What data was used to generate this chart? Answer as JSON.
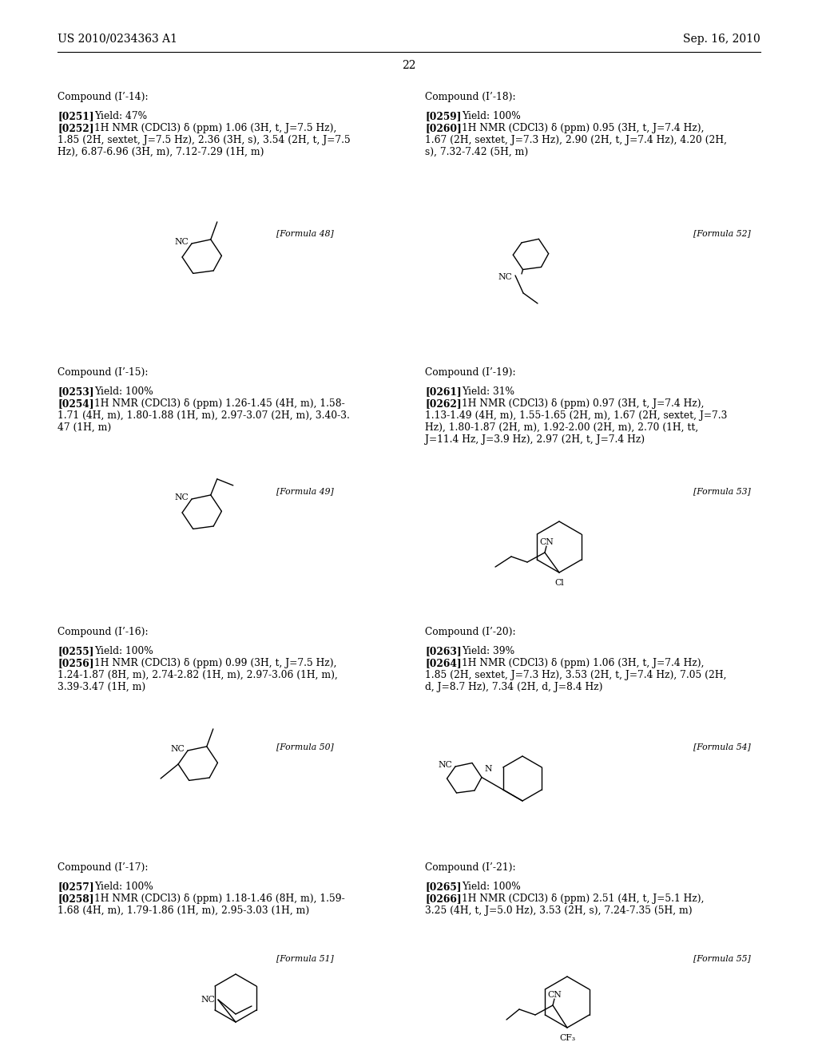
{
  "header_left": "US 2010/0234363 A1",
  "header_right": "Sep. 16, 2010",
  "page_number": "22",
  "background_color": "#ffffff",
  "text_color": "#000000",
  "compounds": [
    {
      "id": "left1",
      "name": "Compound (I’-14):",
      "para1_ref": "[0251]",
      "para1_text": "   Yield: 47%",
      "para2_ref": "[0252]",
      "para2_text": "   1H NMR (CDCl3) δ (ppm) 1.06 (3H, t, J=7.5 Hz),\n1.85 (2H, sextet, J=7.5 Hz), 2.36 (3H, s), 3.54 (2H, t, J=7.5\nHz), 6.87-6.96 (3H, m), 7.12-7.29 (1H, m)",
      "formula_label": "[Formula 48]",
      "col": "left"
    },
    {
      "id": "right1",
      "name": "Compound (I’-18):",
      "para1_ref": "[0259]",
      "para1_text": "   Yield: 100%",
      "para2_ref": "[0260]",
      "para2_text": "   1H NMR (CDCl3) δ (ppm) 0.95 (3H, t, J=7.4 Hz),\n1.67 (2H, sextet, J=7.3 Hz), 2.90 (2H, t, J=7.4 Hz), 4.20 (2H,\ns), 7.32-7.42 (5H, m)",
      "formula_label": "[Formula 52]",
      "col": "right"
    },
    {
      "id": "left2",
      "name": "Compound (I’-15):",
      "para1_ref": "[0253]",
      "para1_text": "   Yield: 100%",
      "para2_ref": "[0254]",
      "para2_text": "   1H NMR (CDCl3) δ (ppm) 1.26-1.45 (4H, m), 1.58-\n1.71 (4H, m), 1.80-1.88 (1H, m), 2.97-3.07 (2H, m), 3.40-3.\n47 (1H, m)",
      "formula_label": "[Formula 49]",
      "col": "left"
    },
    {
      "id": "right2",
      "name": "Compound (I’-19):",
      "para1_ref": "[0261]",
      "para1_text": "   Yield: 31%",
      "para2_ref": "[0262]",
      "para2_text": "   1H NMR (CDCl3) δ (ppm) 0.97 (3H, t, J=7.4 Hz),\n1.13-1.49 (4H, m), 1.55-1.65 (2H, m), 1.67 (2H, sextet, J=7.3\nHz), 1.80-1.87 (2H, m), 1.92-2.00 (2H, m), 2.70 (1H, tt,\nJ=11.4 Hz, J=3.9 Hz), 2.97 (2H, t, J=7.4 Hz)",
      "formula_label": "[Formula 53]",
      "col": "right"
    },
    {
      "id": "left3",
      "name": "Compound (I’-16):",
      "para1_ref": "[0255]",
      "para1_text": "   Yield: 100%",
      "para2_ref": "[0256]",
      "para2_text": "   1H NMR (CDCl3) δ (ppm) 0.99 (3H, t, J=7.5 Hz),\n1.24-1.87 (8H, m), 2.74-2.82 (1H, m), 2.97-3.06 (1H, m),\n3.39-3.47 (1H, m)",
      "formula_label": "[Formula 50]",
      "col": "left"
    },
    {
      "id": "right3",
      "name": "Compound (I’-20):",
      "para1_ref": "[0263]",
      "para1_text": "   Yield: 39%",
      "para2_ref": "[0264]",
      "para2_text": "   1H NMR (CDCl3) δ (ppm) 1.06 (3H, t, J=7.4 Hz),\n1.85 (2H, sextet, J=7.3 Hz), 3.53 (2H, t, J=7.4 Hz), 7.05 (2H,\nd, J=8.7 Hz), 7.34 (2H, d, J=8.4 Hz)",
      "formula_label": "[Formula 54]",
      "col": "right"
    },
    {
      "id": "left4",
      "name": "Compound (I’-17):",
      "para1_ref": "[0257]",
      "para1_text": "   Yield: 100%",
      "para2_ref": "[0258]",
      "para2_text": "   1H NMR (CDCl3) δ (ppm) 1.18-1.46 (8H, m), 1.59-\n1.68 (4H, m), 1.79-1.86 (1H, m), 2.95-3.03 (1H, m)",
      "formula_label": "[Formula 51]",
      "col": "left"
    },
    {
      "id": "right4",
      "name": "Compound (I’-21):",
      "para1_ref": "[0265]",
      "para1_text": "   Yield: 100%",
      "para2_ref": "[0266]",
      "para2_text": "   1H NMR (CDCl3) δ (ppm) 2.51 (4H, t, J=5.1 Hz),\n3.25 (4H, t, J=5.0 Hz), 3.53 (2H, s), 7.24-7.35 (5H, m)",
      "formula_label": "[Formula 55]",
      "col": "right"
    }
  ]
}
